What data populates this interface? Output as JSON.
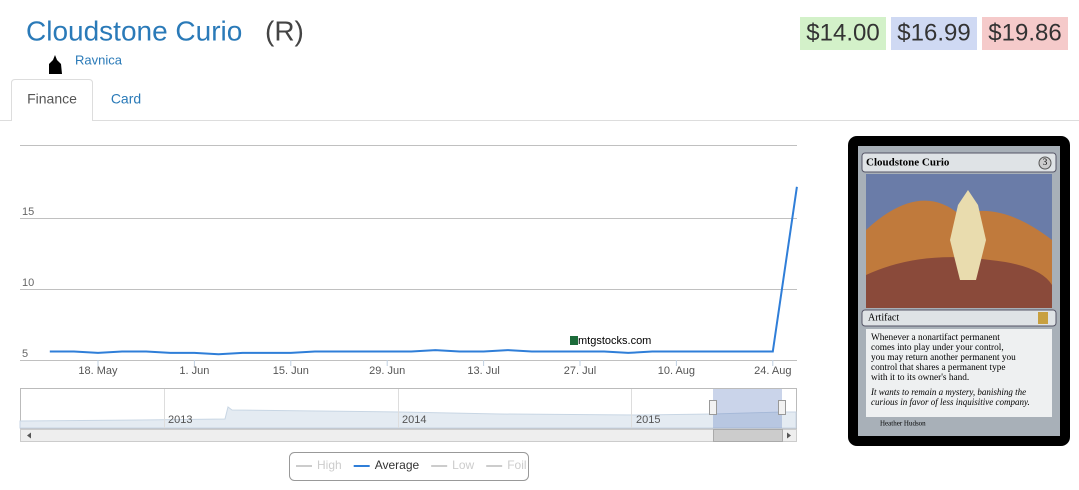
{
  "header": {
    "title": "Cloudstone Curio",
    "rarity": "(R)",
    "set": "Ravnica"
  },
  "prices": [
    "$14.00",
    "$16.99",
    "$19.86"
  ],
  "tabs": [
    "Finance",
    "Card"
  ],
  "watermark": "mtgstocks.com",
  "chart_data": {
    "type": "line",
    "categories": [
      null,
      null,
      "18. May",
      null,
      null,
      null,
      "1. Jun",
      null,
      null,
      null,
      "15. Jun",
      null,
      null,
      null,
      "29. Jun",
      null,
      null,
      null,
      "13. Jul",
      null,
      null,
      null,
      "27. Jul",
      null,
      null,
      null,
      "10. Aug",
      null,
      null,
      null,
      "24. Aug",
      null
    ],
    "series": [
      {
        "name": "High",
        "color": "#cccccc",
        "visible": false
      },
      {
        "name": "Average",
        "color": "#2f7ed8",
        "visible": true,
        "values": [
          5.6,
          5.6,
          5.5,
          5.6,
          5.6,
          5.5,
          5.5,
          5.4,
          5.5,
          5.5,
          5.5,
          5.6,
          5.6,
          5.6,
          5.6,
          5.6,
          5.7,
          5.6,
          5.6,
          5.7,
          5.6,
          5.6,
          5.6,
          5.6,
          5.5,
          5.6,
          5.6,
          5.6,
          5.6,
          5.6,
          5.6,
          17.2
        ]
      },
      {
        "name": "Low",
        "color": "#cccccc",
        "visible": false
      },
      {
        "name": "Foil",
        "color": "#cccccc",
        "visible": false
      }
    ],
    "ylim": [
      5,
      20
    ],
    "yticks": [
      5,
      10,
      15
    ],
    "grid": true,
    "navigator": {
      "labels": [
        "2013",
        "2014",
        "2015"
      ]
    }
  },
  "card": {
    "name": "Cloudstone Curio",
    "cost": "3",
    "type_line": "Artifact",
    "rules": [
      "Whenever a nonartifact permanent",
      "comes into play under your control,",
      "you may return another permanent you",
      "control that shares a permanent type",
      "with it to its owner's hand."
    ],
    "flavor": [
      "It wants to remain a mystery, banishing the",
      "curious in favor of less inquisitive company."
    ],
    "artist": "Heather Hudson"
  }
}
